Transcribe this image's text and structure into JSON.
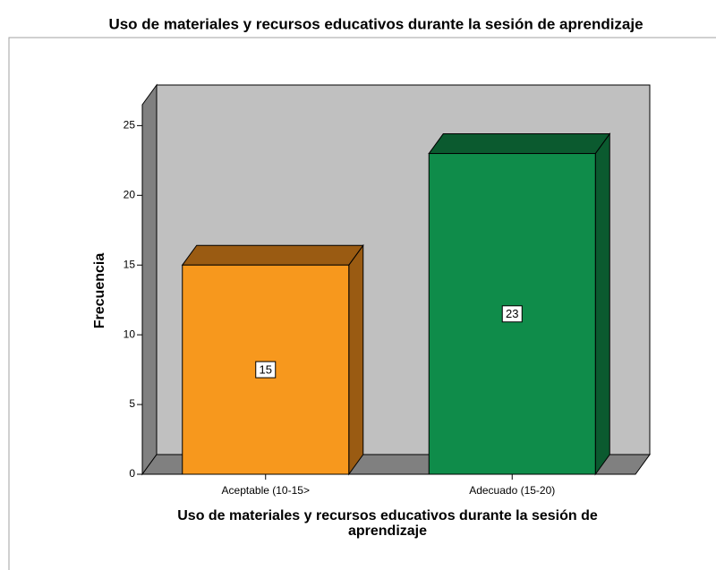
{
  "chart_data": {
    "type": "bar3d",
    "title": "Uso de materiales y recursos educativos durante la sesión de aprendizaje",
    "x_label": "Uso de materiales y recursos educativos durante la sesión de aprendizaje",
    "y_label": "Frecuencia",
    "categories": [
      "Aceptable (10-15>",
      "Adecuado (15-20)"
    ],
    "values": [
      15,
      23
    ],
    "colors": [
      "#f7981d",
      "#0f8c4a"
    ],
    "side_colors": [
      "#9a5b12",
      "#0b5a2f"
    ],
    "ylim": [
      0,
      26.5
    ],
    "yticks": [
      0,
      5,
      10,
      15,
      20,
      25
    ]
  }
}
